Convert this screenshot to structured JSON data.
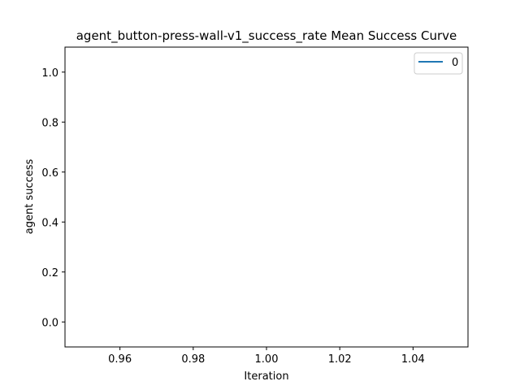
{
  "chart_data": {
    "type": "line",
    "title": "agent_button-press-wall-v1_success_rate Mean Success Curve",
    "xlabel": "Iteration",
    "ylabel": "agent success",
    "xlim": [
      0.945,
      1.055
    ],
    "ylim": [
      -0.1,
      1.1
    ],
    "xticks": [
      0.96,
      0.98,
      1.0,
      1.02,
      1.04
    ],
    "xtick_labels": [
      "0.96",
      "0.98",
      "1.00",
      "1.02",
      "1.04"
    ],
    "yticks": [
      0.0,
      0.2,
      0.4,
      0.6,
      0.8,
      1.0
    ],
    "ytick_labels": [
      "0.0",
      "0.2",
      "0.4",
      "0.6",
      "0.8",
      "1.0"
    ],
    "grid": false,
    "legend_position": "top-right",
    "series": [
      {
        "name": "0",
        "color": "#1f77b4",
        "x": [],
        "y": []
      }
    ]
  }
}
